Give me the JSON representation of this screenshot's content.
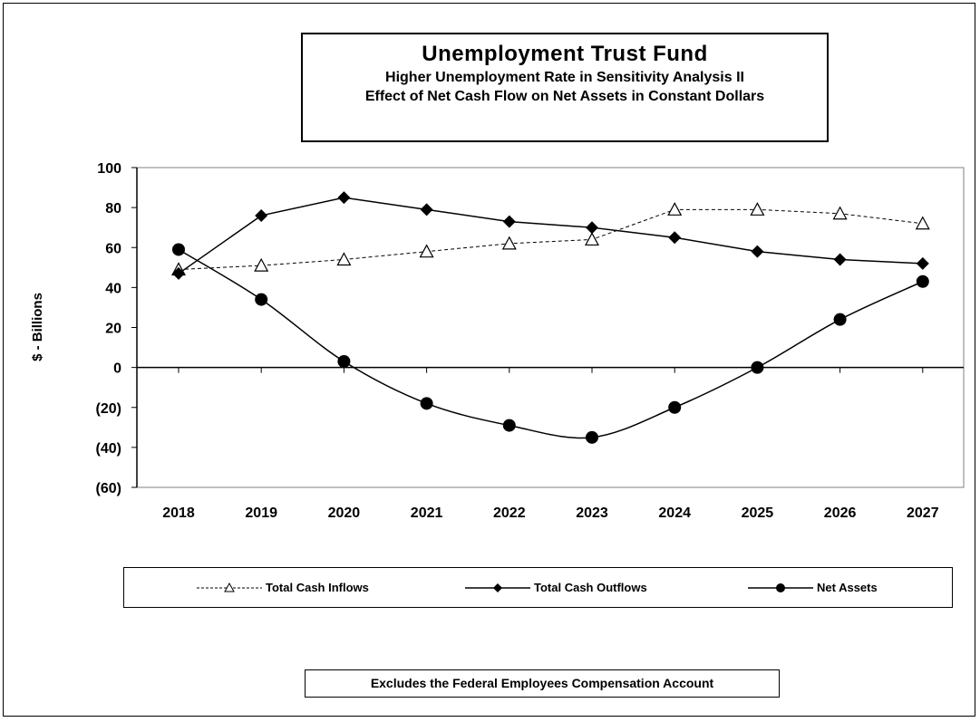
{
  "chart_data": {
    "type": "line",
    "title": "Unemployment Trust Fund",
    "subtitle_1": "Higher Unemployment Rate in Sensitivity Analysis II",
    "subtitle_2": "Effect of Net Cash Flow on Net Assets in Constant Dollars",
    "ylabel": "$ - Billions",
    "xlabel": "",
    "categories": [
      "2018",
      "2019",
      "2020",
      "2021",
      "2022",
      "2023",
      "2024",
      "2025",
      "2026",
      "2027"
    ],
    "ylim": [
      -60,
      100
    ],
    "yticks": [
      100,
      80,
      60,
      40,
      20,
      0,
      -20,
      -40,
      -60
    ],
    "ytick_labels": [
      "100",
      "80",
      "60",
      "40",
      "20",
      "0",
      "(20)",
      "(40)",
      "(60)"
    ],
    "grid": false,
    "legend_placement": "bottom",
    "series": [
      {
        "name": "Total Cash Inflows",
        "marker": "triangle-open",
        "line": "dashed",
        "values": [
          49,
          51,
          54,
          58,
          62,
          64,
          79,
          79,
          77,
          72
        ]
      },
      {
        "name": "Total Cash Outflows",
        "marker": "diamond-filled",
        "line": "solid",
        "values": [
          47,
          76,
          85,
          79,
          73,
          70,
          65,
          58,
          54,
          52
        ]
      },
      {
        "name": "Net Assets",
        "marker": "circle-filled",
        "line": "solid",
        "values": [
          59,
          34,
          3,
          -18,
          -29,
          -35,
          -20,
          0,
          24,
          43
        ]
      }
    ]
  },
  "footnote": "Excludes the Federal Employees Compensation Account",
  "colors": {
    "line": "#000000",
    "plot_background": "#ffffff"
  }
}
